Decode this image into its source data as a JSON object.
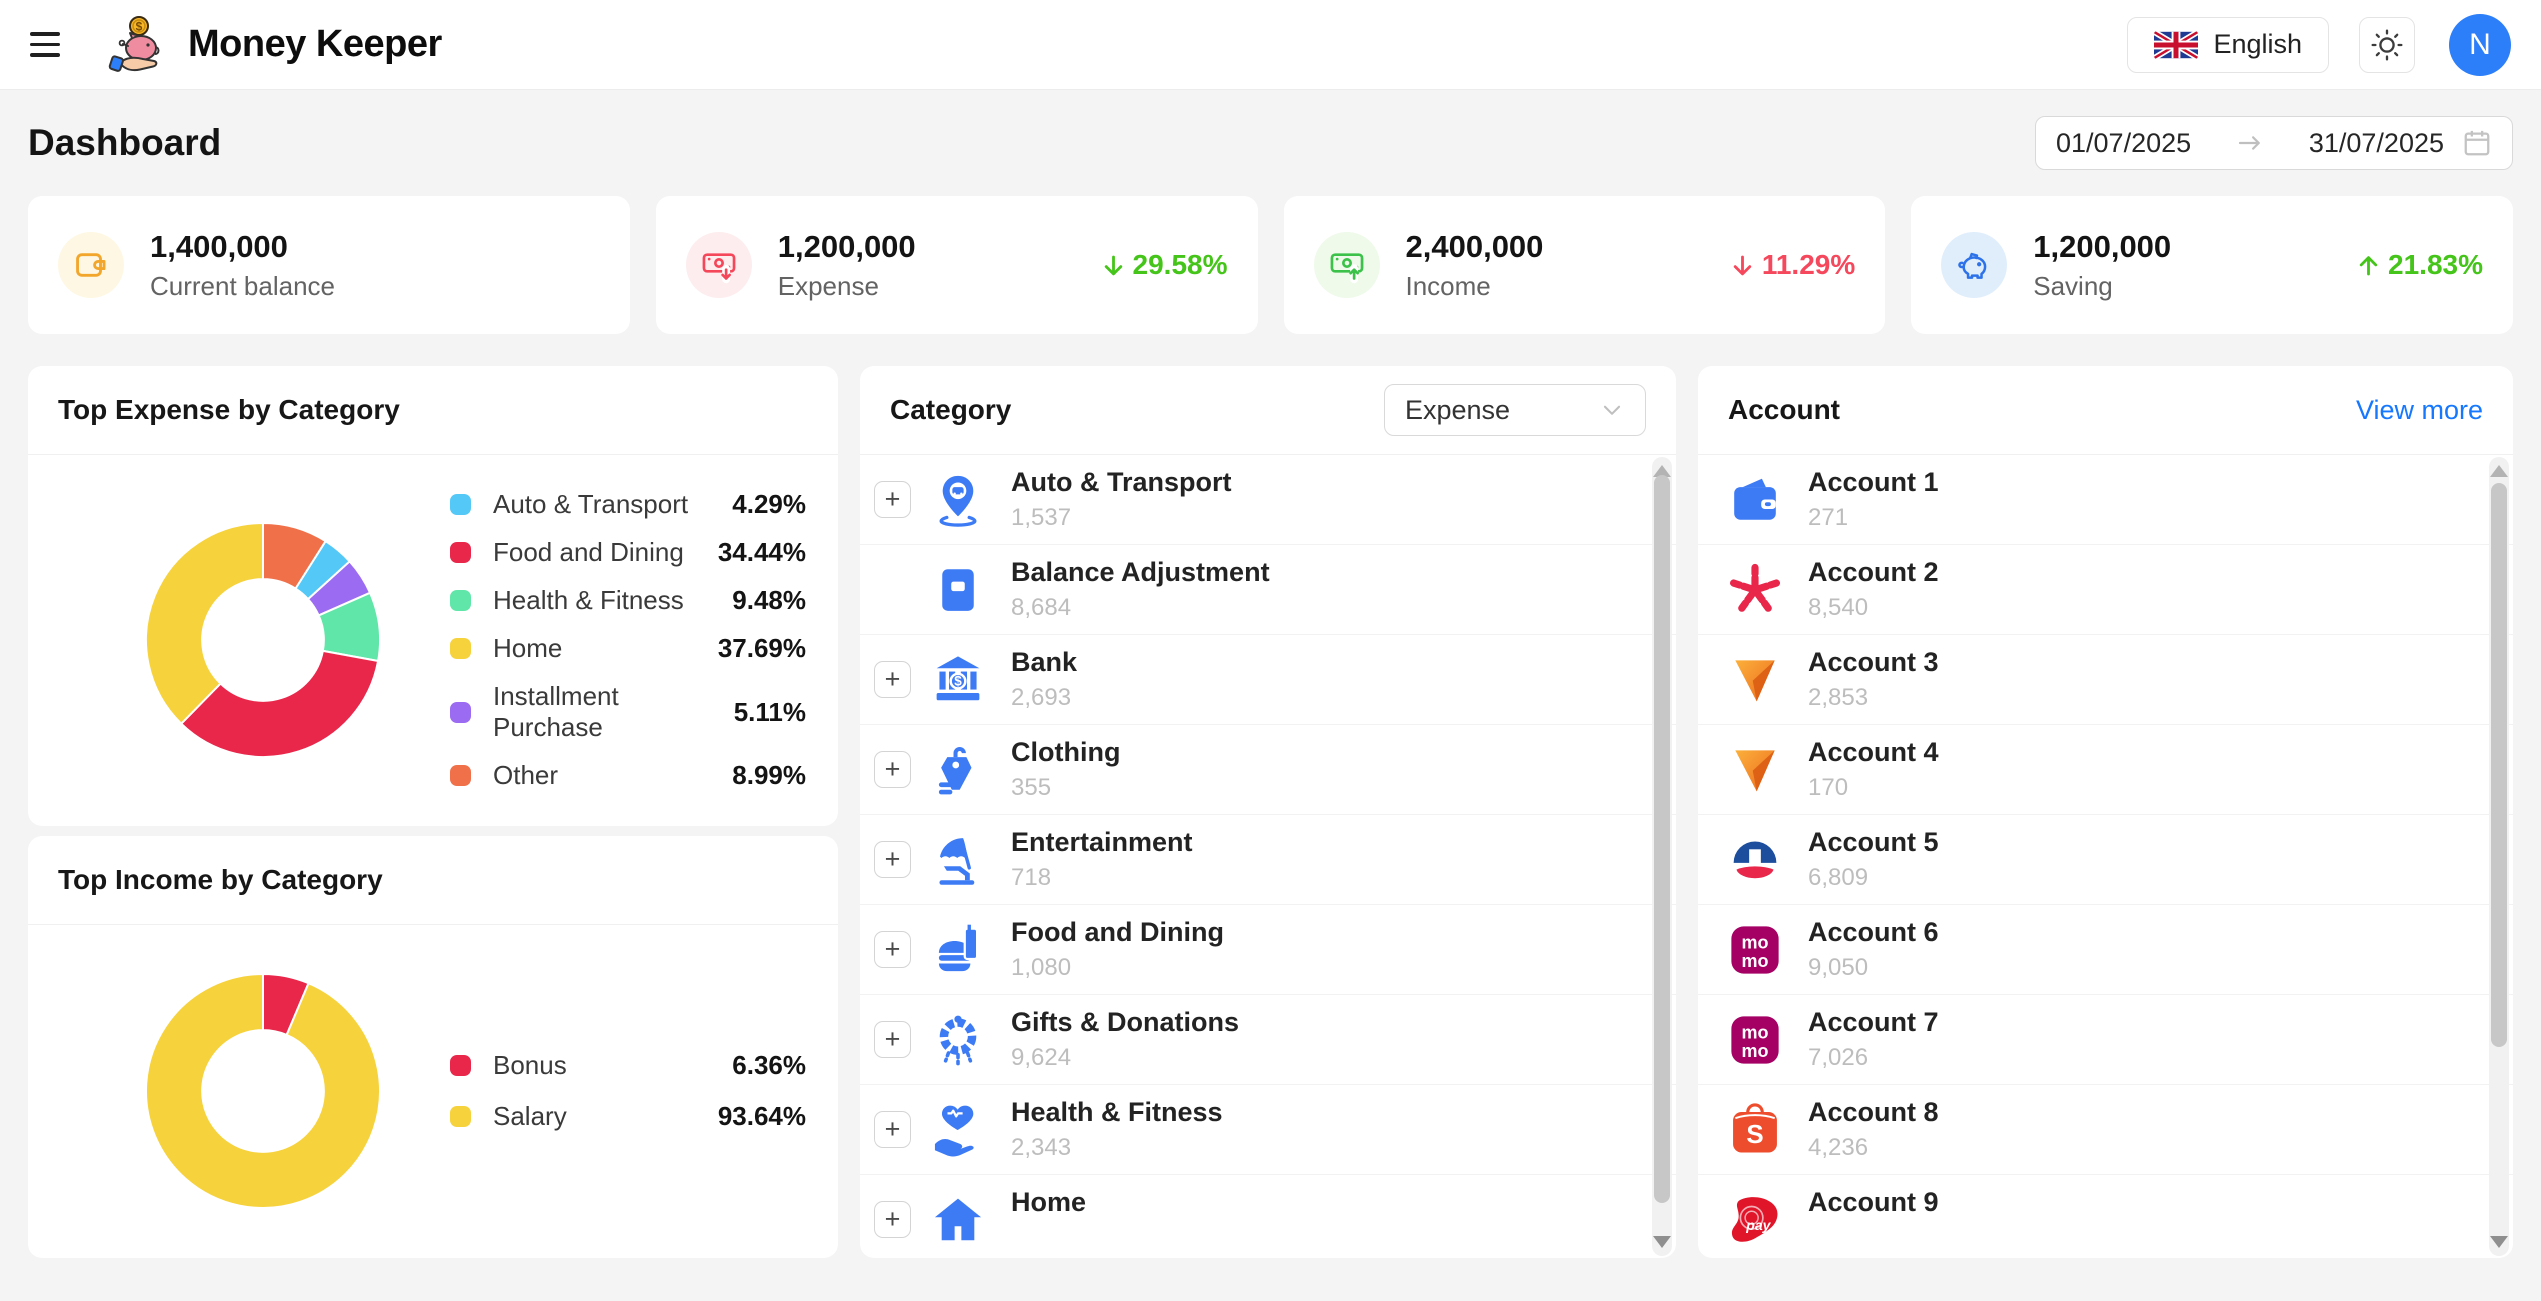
{
  "header": {
    "app_title": "Money Keeper",
    "language": "English",
    "avatar_initial": "N"
  },
  "page": {
    "title": "Dashboard",
    "date_from": "01/07/2025",
    "date_to": "31/07/2025"
  },
  "stats": [
    {
      "label": "Current balance",
      "value": "1,400,000",
      "icon": "wallet-icon",
      "icon_color": "#F2A62C",
      "icon_bg": "#FEF7E3",
      "change": null
    },
    {
      "label": "Expense",
      "value": "1,200,000",
      "icon": "money-out-icon",
      "icon_color": "#F5475A",
      "icon_bg": "#FDEDEE",
      "change": {
        "direction": "down",
        "text": "29.58%",
        "color": "#45C41A"
      }
    },
    {
      "label": "Income",
      "value": "2,400,000",
      "icon": "money-in-icon",
      "icon_color": "#3CC24A",
      "icon_bg": "#EFFAEA",
      "change": {
        "direction": "down",
        "text": "11.29%",
        "color": "#F5485C"
      }
    },
    {
      "label": "Saving",
      "value": "1,200,000",
      "icon": "piggy-icon",
      "icon_color": "#2D72E8",
      "icon_bg": "#E0EEFC",
      "change": {
        "direction": "up",
        "text": "21.83%",
        "color": "#45C41A"
      }
    }
  ],
  "chart_data": [
    {
      "type": "pie",
      "title": "Top Expense by Category",
      "legend_position": "right",
      "inner_ratio": 0.52,
      "value_suffix": "%",
      "slices": [
        {
          "label": "Auto & Transport",
          "value": 4.29,
          "color": "#54C8F6"
        },
        {
          "label": "Food and Dining",
          "value": 34.44,
          "color": "#E8274B"
        },
        {
          "label": "Health & Fitness",
          "value": 9.48,
          "color": "#60E6A8"
        },
        {
          "label": "Home",
          "value": 37.69,
          "color": "#F6D23C"
        },
        {
          "label": "Installment Purchase",
          "value": 5.11,
          "color": "#9B6BF2"
        },
        {
          "label": "Other",
          "value": 8.99,
          "color": "#F0704A"
        }
      ],
      "draw_order": [
        5,
        0,
        4,
        2,
        1,
        3
      ]
    },
    {
      "type": "pie",
      "title": "Top Income by Category",
      "legend_position": "right",
      "inner_ratio": 0.52,
      "value_suffix": "%",
      "slices": [
        {
          "label": "Bonus",
          "value": 6.36,
          "color": "#E8274B"
        },
        {
          "label": "Salary",
          "value": 93.64,
          "color": "#F6D23C"
        }
      ],
      "draw_order": [
        0,
        1
      ]
    }
  ],
  "category": {
    "title": "Category",
    "filter_value": "Expense",
    "items": [
      {
        "name": "Auto & Transport",
        "value": "1,537",
        "icon": "map-pin-car-icon",
        "expandable": true
      },
      {
        "name": "Balance Adjustment",
        "value": "8,684",
        "icon": "archive-box-icon",
        "expandable": false
      },
      {
        "name": "Bank",
        "value": "2,693",
        "icon": "bank-icon",
        "expandable": true
      },
      {
        "name": "Clothing",
        "value": "355",
        "icon": "clothing-tag-icon",
        "expandable": true
      },
      {
        "name": "Entertainment",
        "value": "718",
        "icon": "beach-chair-icon",
        "expandable": true
      },
      {
        "name": "Food and Dining",
        "value": "1,080",
        "icon": "burger-drink-icon",
        "expandable": true
      },
      {
        "name": "Gifts & Donations",
        "value": "9,624",
        "icon": "wreath-icon",
        "expandable": true
      },
      {
        "name": "Health & Fitness",
        "value": "2,343",
        "icon": "heart-hand-icon",
        "expandable": true
      },
      {
        "name": "Home",
        "value": "",
        "icon": "home-icon",
        "expandable": true
      }
    ]
  },
  "account": {
    "title": "Account",
    "view_more_label": "View more",
    "items": [
      {
        "name": "Account 1",
        "value": "271",
        "icon": "wallet-blue-icon"
      },
      {
        "name": "Account 2",
        "value": "8,540",
        "icon": "star-crimson-icon"
      },
      {
        "name": "Account 3",
        "value": "2,853",
        "icon": "triangle-orange-icon"
      },
      {
        "name": "Account 4",
        "value": "170",
        "icon": "triangle-orange-icon"
      },
      {
        "name": "Account 5",
        "value": "6,809",
        "icon": "globe-navy-red-icon"
      },
      {
        "name": "Account 6",
        "value": "9,050",
        "icon": "momo-icon"
      },
      {
        "name": "Account 7",
        "value": "7,026",
        "icon": "momo-icon"
      },
      {
        "name": "Account 8",
        "value": "4,236",
        "icon": "shopeepay-icon"
      },
      {
        "name": "Account 9",
        "value": "",
        "icon": "viettelpay-icon"
      }
    ]
  }
}
